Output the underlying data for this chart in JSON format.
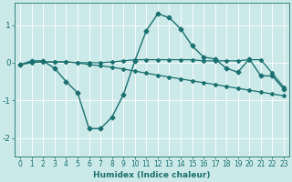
{
  "xlabel": "Humidex (Indice chaleur)",
  "background_color": "#cce9e9",
  "grid_color": "#ffffff",
  "line_color": "#1a7070",
  "xlim": [
    -0.5,
    23.5
  ],
  "ylim": [
    -2.5,
    1.6
  ],
  "yticks": [
    -2,
    -1,
    0,
    1
  ],
  "xticks": [
    0,
    1,
    2,
    3,
    4,
    5,
    6,
    7,
    8,
    9,
    10,
    11,
    12,
    13,
    14,
    15,
    16,
    17,
    18,
    19,
    20,
    21,
    22,
    23
  ],
  "series": [
    {
      "x": [
        0,
        1,
        2,
        3,
        4,
        5,
        6,
        7,
        8,
        9,
        10,
        11,
        12,
        13,
        14,
        15,
        16,
        17,
        18,
        19,
        20,
        21,
        22,
        23
      ],
      "y": [
        -0.05,
        0.05,
        0.05,
        -0.15,
        -0.5,
        -0.8,
        -1.75,
        -1.75,
        -1.45,
        -0.85,
        0.05,
        0.85,
        1.3,
        1.2,
        0.9,
        0.45,
        0.15,
        0.1,
        -0.15,
        -0.25,
        0.1,
        -0.35,
        -0.35,
        -0.7
      ],
      "marker": "D",
      "markersize": 2.5,
      "linewidth": 1.0
    },
    {
      "x": [
        0,
        1,
        2,
        3,
        4,
        5,
        6,
        7,
        8,
        9,
        10,
        11,
        12,
        13,
        14,
        15,
        16,
        17,
        18,
        19,
        20,
        21,
        22,
        23
      ],
      "y": [
        -0.05,
        0.0,
        0.02,
        0.02,
        0.02,
        0.0,
        -0.05,
        -0.08,
        -0.12,
        -0.17,
        -0.22,
        -0.28,
        -0.33,
        -0.38,
        -0.43,
        -0.48,
        -0.53,
        -0.58,
        -0.63,
        -0.68,
        -0.73,
        -0.78,
        -0.83,
        -0.88
      ],
      "marker": "D",
      "markersize": 2,
      "linewidth": 0.9
    },
    {
      "x": [
        0,
        1,
        2,
        3,
        4,
        5,
        6,
        7,
        8,
        9,
        10,
        11,
        12,
        13,
        14,
        15,
        16,
        17,
        18,
        19,
        20,
        21,
        22,
        23
      ],
      "y": [
        -0.05,
        0.02,
        0.02,
        0.02,
        0.02,
        0.0,
        0.0,
        0.0,
        0.02,
        0.05,
        0.08,
        0.08,
        0.08,
        0.08,
        0.08,
        0.08,
        0.05,
        0.05,
        0.05,
        0.05,
        0.08,
        0.08,
        -0.28,
        -0.65
      ],
      "marker": "D",
      "markersize": 2,
      "linewidth": 0.9
    }
  ]
}
